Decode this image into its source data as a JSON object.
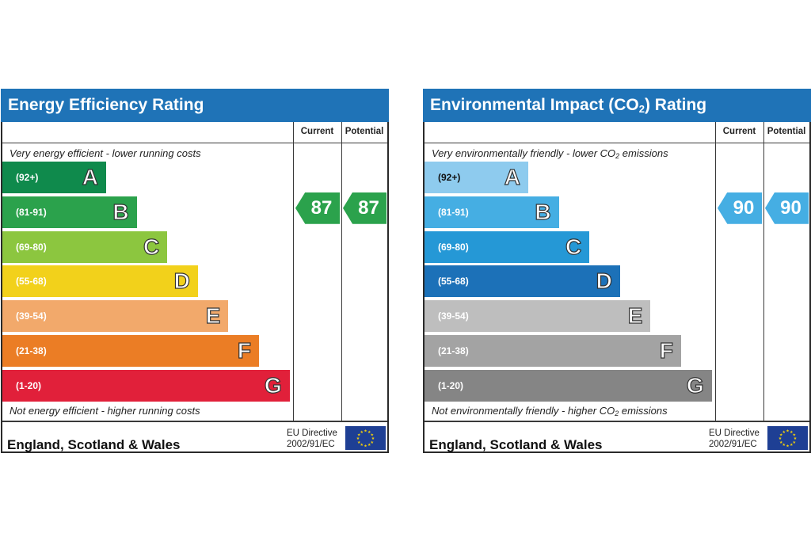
{
  "chart_data": [
    {
      "type": "bar",
      "title": "Energy Efficiency Rating",
      "column_headers": [
        "Current",
        "Potential"
      ],
      "top_note": "Very energy efficient - lower running costs",
      "bottom_note": "Not energy efficient - higher running costs",
      "bands": [
        {
          "letter": "A",
          "range": "(92+)",
          "color": "#0f8a4c"
        },
        {
          "letter": "B",
          "range": "(81-91)",
          "color": "#2ba24c"
        },
        {
          "letter": "C",
          "range": "(69-80)",
          "color": "#8cc63f"
        },
        {
          "letter": "D",
          "range": "(55-68)",
          "color": "#f2d11b"
        },
        {
          "letter": "E",
          "range": "(39-54)",
          "color": "#f2a96b"
        },
        {
          "letter": "F",
          "range": "(21-38)",
          "color": "#eb7d25"
        },
        {
          "letter": "G",
          "range": "(1-20)",
          "color": "#e1203a"
        }
      ],
      "current": {
        "value": 87,
        "band": "B",
        "color": "#2ba24c"
      },
      "potential": {
        "value": 87,
        "band": "B",
        "color": "#2ba24c"
      },
      "footer_region": "England, Scotland & Wales",
      "directive_line1": "EU Directive",
      "directive_line2": "2002/91/EC"
    },
    {
      "type": "bar",
      "title_main": "Environmental Impact (CO",
      "title_sub": "2",
      "title_end": ") Rating",
      "column_headers": [
        "Current",
        "Potential"
      ],
      "top_note_main": "Very environmentally friendly - lower CO",
      "top_note_sub": "2",
      "top_note_end": " emissions",
      "bottom_note_main": "Not environmentally friendly - higher CO",
      "bottom_note_sub": "2",
      "bottom_note_end": " emissions",
      "bands": [
        {
          "letter": "A",
          "range": "(92+)",
          "color": "#8ecbee"
        },
        {
          "letter": "B",
          "range": "(81-91)",
          "color": "#45aee3"
        },
        {
          "letter": "C",
          "range": "(69-80)",
          "color": "#2598d6"
        },
        {
          "letter": "D",
          "range": "(55-68)",
          "color": "#1c71b8"
        },
        {
          "letter": "E",
          "range": "(39-54)",
          "color": "#bebebe"
        },
        {
          "letter": "F",
          "range": "(21-38)",
          "color": "#a3a3a3"
        },
        {
          "letter": "G",
          "range": "(1-20)",
          "color": "#858585"
        }
      ],
      "current": {
        "value": 90,
        "band": "B",
        "color": "#45aee3"
      },
      "potential": {
        "value": 90,
        "band": "B",
        "color": "#45aee3"
      },
      "footer_region": "England, Scotland & Wales",
      "directive_line1": "EU Directive",
      "directive_line2": "2002/91/EC"
    }
  ]
}
